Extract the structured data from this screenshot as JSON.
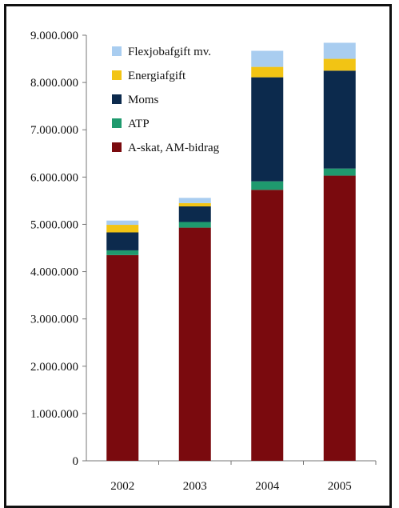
{
  "chart_data": {
    "type": "bar",
    "stacked": true,
    "categories": [
      "2002",
      "2003",
      "2004",
      "2005"
    ],
    "series": [
      {
        "name": "A-skat, AM-bidrag",
        "color": "#7a0a0e",
        "values": [
          4350000,
          4930000,
          5730000,
          6030000
        ]
      },
      {
        "name": "ATP",
        "color": "#1f9a6e",
        "values": [
          100000,
          120000,
          180000,
          150000
        ]
      },
      {
        "name": "Moms",
        "color": "#0c2a4d",
        "values": [
          380000,
          330000,
          2200000,
          2070000
        ]
      },
      {
        "name": "Energiafgift",
        "color": "#f2c414",
        "values": [
          160000,
          70000,
          220000,
          250000
        ]
      },
      {
        "name": "Flexjobafgift mv.",
        "color": "#a9cdf0",
        "values": [
          90000,
          110000,
          340000,
          340000
        ]
      }
    ],
    "ylim": [
      0,
      9000000
    ],
    "y_ticks": [
      0,
      1000000,
      2000000,
      3000000,
      4000000,
      5000000,
      6000000,
      7000000,
      8000000,
      9000000
    ],
    "y_tick_labels": [
      "0",
      "1.000.000",
      "2.000.000",
      "3.000.000",
      "4.000.000",
      "5.000.000",
      "6.000.000",
      "7.000.000",
      "8.000.000",
      "9.000.000"
    ],
    "legend_order": [
      "Flexjobafgift mv.",
      "Energiafgift",
      "Moms",
      "ATP",
      "A-skat, AM-bidrag"
    ],
    "legend_position": "top-left",
    "grid": false
  }
}
